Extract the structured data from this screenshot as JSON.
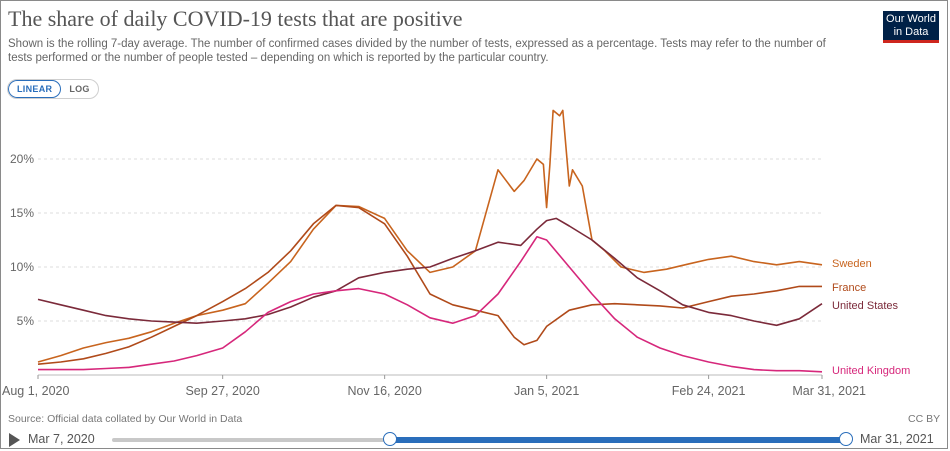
{
  "header": {
    "title": "The share of daily COVID-19 tests that are positive",
    "subtitle": "Shown is the rolling 7-day average. The number of confirmed cases divided by the number of tests, expressed as a percentage. Tests may refer to the number of tests performed or the number of people tested – depending on which is reported by the particular country.",
    "logo_line1": "Our World",
    "logo_line2": "in Data"
  },
  "scale_toggle": {
    "linear": "LINEAR",
    "log": "LOG",
    "selected": "linear"
  },
  "footer": {
    "source": "Source: Official data collated by Our World in Data",
    "license": "CC BY"
  },
  "timeline": {
    "start_label": "Mar 7, 2020",
    "end_label": "Mar 31, 2021",
    "selected_start": "2020-08-01",
    "selected_end": "2021-03-31"
  },
  "colors": {
    "Sweden": "#c8641e",
    "France": "#b04a1a",
    "United States": "#7b2a3a",
    "United Kingdom": "#d6277b",
    "grid": "#dddddd",
    "axis_text": "#666666"
  },
  "chart_data": {
    "type": "line",
    "title": "The share of daily COVID-19 tests that are positive",
    "xlabel": "",
    "ylabel": "",
    "x_range": [
      "2020-08-01",
      "2021-03-31"
    ],
    "ylim": [
      0,
      25
    ],
    "y_ticks": [
      0,
      5,
      10,
      15,
      20
    ],
    "y_tick_labels": [
      "",
      "5%",
      "10%",
      "15%",
      "20%"
    ],
    "x_ticks": [
      "2020-08-01",
      "2020-09-27",
      "2020-11-16",
      "2021-01-05",
      "2021-02-24",
      "2021-03-31"
    ],
    "x_tick_labels": [
      "Aug 1, 2020",
      "Sep 27, 2020",
      "Nov 16, 2020",
      "Jan 5, 2021",
      "Feb 24, 2021",
      "Mar 31, 2021"
    ],
    "grid": "horizontal",
    "legend": "line-end labels at right",
    "series": [
      {
        "name": "Sweden",
        "points": [
          [
            "2020-08-01",
            1.2
          ],
          [
            "2020-08-08",
            1.8
          ],
          [
            "2020-08-15",
            2.5
          ],
          [
            "2020-08-22",
            3.0
          ],
          [
            "2020-08-29",
            3.4
          ],
          [
            "2020-09-05",
            4.0
          ],
          [
            "2020-09-12",
            4.8
          ],
          [
            "2020-09-19",
            5.5
          ],
          [
            "2020-09-27",
            6.0
          ],
          [
            "2020-10-04",
            6.6
          ],
          [
            "2020-10-11",
            8.5
          ],
          [
            "2020-10-18",
            10.5
          ],
          [
            "2020-10-25",
            13.5
          ],
          [
            "2020-11-01",
            15.7
          ],
          [
            "2020-11-08",
            15.6
          ],
          [
            "2020-11-16",
            14.5
          ],
          [
            "2020-11-23",
            11.5
          ],
          [
            "2020-11-30",
            9.5
          ],
          [
            "2020-12-07",
            10.0
          ],
          [
            "2020-12-14",
            11.5
          ],
          [
            "2020-12-21",
            19.0
          ],
          [
            "2020-12-26",
            17.0
          ],
          [
            "2020-12-29",
            18.0
          ],
          [
            "2021-01-02",
            20.0
          ],
          [
            "2021-01-04",
            19.5
          ],
          [
            "2021-01-05",
            15.5
          ],
          [
            "2021-01-06",
            19.5
          ],
          [
            "2021-01-07",
            24.5
          ],
          [
            "2021-01-09",
            24.0
          ],
          [
            "2021-01-10",
            24.5
          ],
          [
            "2021-01-12",
            17.5
          ],
          [
            "2021-01-13",
            19.0
          ],
          [
            "2021-01-16",
            17.5
          ],
          [
            "2021-01-19",
            12.5
          ],
          [
            "2021-01-23",
            11.5
          ],
          [
            "2021-01-28",
            10.0
          ],
          [
            "2021-02-04",
            9.5
          ],
          [
            "2021-02-11",
            9.8
          ],
          [
            "2021-02-18",
            10.3
          ],
          [
            "2021-02-24",
            10.7
          ],
          [
            "2021-03-03",
            11.0
          ],
          [
            "2021-03-10",
            10.5
          ],
          [
            "2021-03-17",
            10.2
          ],
          [
            "2021-03-24",
            10.5
          ],
          [
            "2021-03-31",
            10.2
          ]
        ]
      },
      {
        "name": "France",
        "points": [
          [
            "2020-08-01",
            1.0
          ],
          [
            "2020-08-08",
            1.2
          ],
          [
            "2020-08-15",
            1.5
          ],
          [
            "2020-08-22",
            2.0
          ],
          [
            "2020-08-29",
            2.6
          ],
          [
            "2020-09-05",
            3.5
          ],
          [
            "2020-09-12",
            4.5
          ],
          [
            "2020-09-19",
            5.5
          ],
          [
            "2020-09-27",
            6.8
          ],
          [
            "2020-10-04",
            8.0
          ],
          [
            "2020-10-11",
            9.5
          ],
          [
            "2020-10-18",
            11.5
          ],
          [
            "2020-10-25",
            14.0
          ],
          [
            "2020-11-01",
            15.7
          ],
          [
            "2020-11-08",
            15.5
          ],
          [
            "2020-11-16",
            14.0
          ],
          [
            "2020-11-23",
            11.0
          ],
          [
            "2020-11-30",
            7.5
          ],
          [
            "2020-12-07",
            6.5
          ],
          [
            "2020-12-14",
            6.0
          ],
          [
            "2020-12-21",
            5.5
          ],
          [
            "2020-12-26",
            3.5
          ],
          [
            "2020-12-29",
            2.8
          ],
          [
            "2021-01-02",
            3.2
          ],
          [
            "2021-01-05",
            4.5
          ],
          [
            "2021-01-12",
            6.0
          ],
          [
            "2021-01-19",
            6.5
          ],
          [
            "2021-01-26",
            6.6
          ],
          [
            "2021-02-02",
            6.5
          ],
          [
            "2021-02-09",
            6.4
          ],
          [
            "2021-02-16",
            6.2
          ],
          [
            "2021-02-24",
            6.8
          ],
          [
            "2021-03-03",
            7.3
          ],
          [
            "2021-03-10",
            7.5
          ],
          [
            "2021-03-17",
            7.8
          ],
          [
            "2021-03-24",
            8.2
          ],
          [
            "2021-03-31",
            8.2
          ]
        ]
      },
      {
        "name": "United States",
        "points": [
          [
            "2020-08-01",
            7.0
          ],
          [
            "2020-08-08",
            6.5
          ],
          [
            "2020-08-15",
            6.0
          ],
          [
            "2020-08-22",
            5.5
          ],
          [
            "2020-08-29",
            5.2
          ],
          [
            "2020-09-05",
            5.0
          ],
          [
            "2020-09-12",
            4.9
          ],
          [
            "2020-09-19",
            4.8
          ],
          [
            "2020-09-27",
            5.0
          ],
          [
            "2020-10-04",
            5.2
          ],
          [
            "2020-10-11",
            5.6
          ],
          [
            "2020-10-18",
            6.3
          ],
          [
            "2020-10-25",
            7.2
          ],
          [
            "2020-11-01",
            7.8
          ],
          [
            "2020-11-08",
            9.0
          ],
          [
            "2020-11-16",
            9.5
          ],
          [
            "2020-11-23",
            9.8
          ],
          [
            "2020-11-30",
            10.0
          ],
          [
            "2020-12-07",
            10.8
          ],
          [
            "2020-12-14",
            11.5
          ],
          [
            "2020-12-21",
            12.3
          ],
          [
            "2020-12-28",
            12.0
          ],
          [
            "2021-01-02",
            13.5
          ],
          [
            "2021-01-05",
            14.3
          ],
          [
            "2021-01-08",
            14.5
          ],
          [
            "2021-01-12",
            13.8
          ],
          [
            "2021-01-19",
            12.5
          ],
          [
            "2021-01-26",
            10.8
          ],
          [
            "2021-02-02",
            9.0
          ],
          [
            "2021-02-09",
            7.8
          ],
          [
            "2021-02-16",
            6.5
          ],
          [
            "2021-02-24",
            5.8
          ],
          [
            "2021-03-03",
            5.5
          ],
          [
            "2021-03-10",
            5.0
          ],
          [
            "2021-03-17",
            4.6
          ],
          [
            "2021-03-24",
            5.2
          ],
          [
            "2021-03-31",
            6.6
          ]
        ]
      },
      {
        "name": "United Kingdom",
        "points": [
          [
            "2020-08-01",
            0.5
          ],
          [
            "2020-08-08",
            0.5
          ],
          [
            "2020-08-15",
            0.5
          ],
          [
            "2020-08-22",
            0.6
          ],
          [
            "2020-08-29",
            0.7
          ],
          [
            "2020-09-05",
            1.0
          ],
          [
            "2020-09-12",
            1.3
          ],
          [
            "2020-09-19",
            1.8
          ],
          [
            "2020-09-27",
            2.5
          ],
          [
            "2020-10-04",
            4.0
          ],
          [
            "2020-10-11",
            5.8
          ],
          [
            "2020-10-18",
            6.8
          ],
          [
            "2020-10-25",
            7.5
          ],
          [
            "2020-11-01",
            7.8
          ],
          [
            "2020-11-08",
            8.0
          ],
          [
            "2020-11-16",
            7.5
          ],
          [
            "2020-11-23",
            6.5
          ],
          [
            "2020-11-30",
            5.3
          ],
          [
            "2020-12-07",
            4.8
          ],
          [
            "2020-12-14",
            5.5
          ],
          [
            "2020-12-21",
            7.5
          ],
          [
            "2020-12-28",
            10.5
          ],
          [
            "2021-01-02",
            12.8
          ],
          [
            "2021-01-05",
            12.5
          ],
          [
            "2021-01-12",
            10.0
          ],
          [
            "2021-01-19",
            7.5
          ],
          [
            "2021-01-26",
            5.2
          ],
          [
            "2021-02-02",
            3.5
          ],
          [
            "2021-02-09",
            2.5
          ],
          [
            "2021-02-16",
            1.8
          ],
          [
            "2021-02-24",
            1.2
          ],
          [
            "2021-03-03",
            0.8
          ],
          [
            "2021-03-10",
            0.5
          ],
          [
            "2021-03-17",
            0.4
          ],
          [
            "2021-03-24",
            0.4
          ],
          [
            "2021-03-31",
            0.3
          ]
        ]
      }
    ]
  }
}
